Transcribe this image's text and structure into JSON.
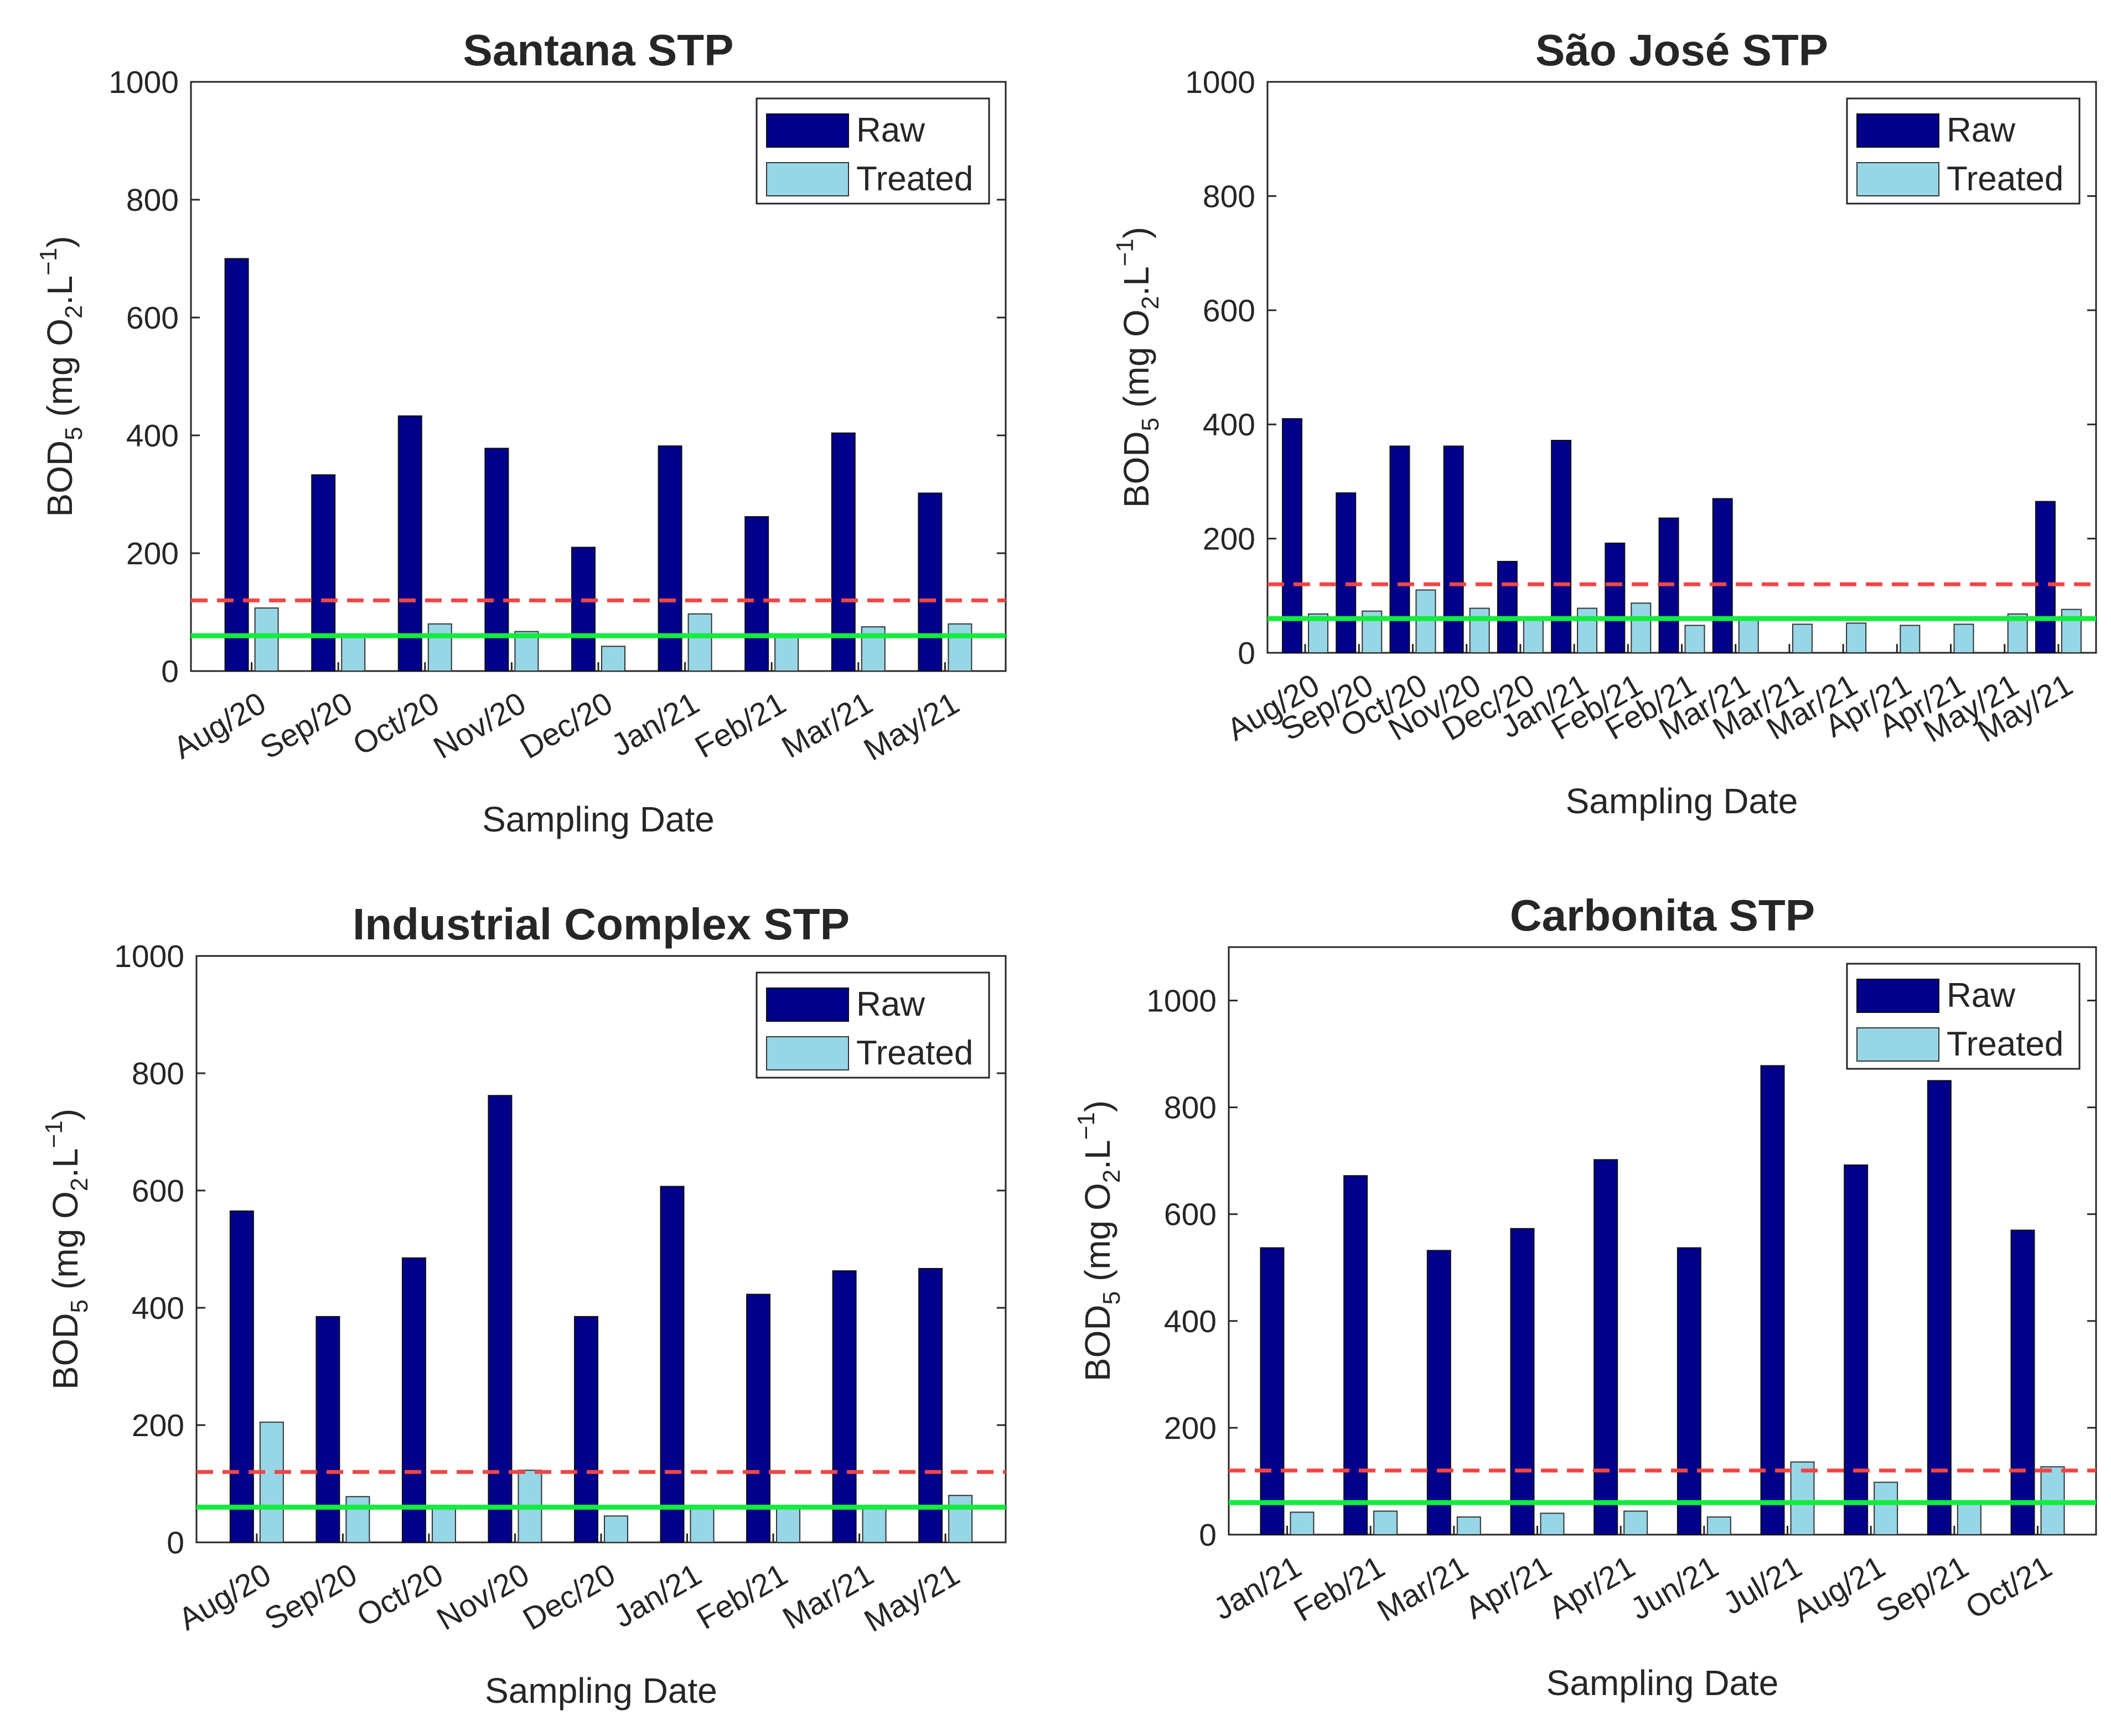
{
  "colors": {
    "raw": "#00008b",
    "treated": "#96d6e6",
    "limit_red": "#f04646",
    "limit_green": "#13ec3c"
  },
  "chart_data": [
    {
      "type": "bar",
      "title": "Santana STP",
      "xlabel": "Sampling Date",
      "ylabel": {
        "main": "BOD",
        "sub": "5",
        "unit_open": " (mg O",
        "unit_sub": "2",
        "unit_mid": ".L",
        "unit_sup": "−1",
        "unit_close": ")"
      },
      "ylim": [
        0,
        1000
      ],
      "yticks": [
        0,
        200,
        400,
        600,
        800,
        1000
      ],
      "categories": [
        "Aug/20",
        "Sep/20",
        "Oct/20",
        "Nov/20",
        "Dec/20",
        "Jan/21",
        "Feb/21",
        "Mar/21",
        "May/21"
      ],
      "series": [
        {
          "name": "Raw",
          "values": [
            700,
            333,
            433,
            378,
            210,
            382,
            262,
            404,
            302
          ]
        },
        {
          "name": "Treated",
          "values": [
            107,
            61,
            80,
            67,
            42,
            97,
            61,
            75,
            80
          ]
        }
      ],
      "reference_lines": [
        {
          "value": 120,
          "style": "dashed",
          "color": "red"
        },
        {
          "value": 60,
          "style": "solid",
          "color": "green"
        }
      ],
      "legend": {
        "position": "top-right",
        "entries": [
          "Raw",
          "Treated"
        ]
      }
    },
    {
      "type": "bar",
      "title": "São José STP",
      "xlabel": "Sampling Date",
      "ylabel": {
        "main": "BOD",
        "sub": "5",
        "unit_open": " (mg O",
        "unit_sub": "2",
        "unit_mid": ".L",
        "unit_sup": "−1",
        "unit_close": ")"
      },
      "ylim": [
        0,
        1000
      ],
      "yticks": [
        0,
        200,
        400,
        600,
        800,
        1000
      ],
      "categories": [
        "Aug/20",
        "Sep/20",
        "Oct/20",
        "Nov/20",
        "Dec/20",
        "Jan/21",
        "Feb/21",
        "Feb/21",
        "Mar/21",
        "Mar/21",
        "Mar/21",
        "Apr/21",
        "Apr/21",
        "May/21",
        "May/21"
      ],
      "series": [
        {
          "name": "Raw",
          "values": [
            410,
            280,
            362,
            362,
            160,
            372,
            192,
            236,
            270,
            0,
            0,
            0,
            0,
            0,
            265
          ]
        },
        {
          "name": "Treated",
          "values": [
            68,
            73,
            110,
            78,
            60,
            78,
            87,
            48,
            63,
            50,
            52,
            48,
            50,
            68,
            76
          ]
        }
      ],
      "reference_lines": [
        {
          "value": 120,
          "style": "dashed",
          "color": "red"
        },
        {
          "value": 60,
          "style": "solid",
          "color": "green"
        }
      ],
      "legend": {
        "position": "top-right",
        "entries": [
          "Raw",
          "Treated"
        ]
      }
    },
    {
      "type": "bar",
      "title": "Industrial Complex STP",
      "xlabel": "Sampling Date",
      "ylabel": {
        "main": "BOD",
        "sub": "5",
        "unit_open": " (mg O",
        "unit_sub": "2",
        "unit_mid": ".L",
        "unit_sup": "−1",
        "unit_close": ")"
      },
      "ylim": [
        0,
        1000
      ],
      "yticks": [
        0,
        200,
        400,
        600,
        800,
        1000
      ],
      "categories": [
        "Aug/20",
        "Sep/20",
        "Oct/20",
        "Nov/20",
        "Dec/20",
        "Jan/21",
        "Feb/21",
        "Mar/21",
        "May/21"
      ],
      "series": [
        {
          "name": "Raw",
          "values": [
            565,
            385,
            485,
            762,
            385,
            607,
            423,
            463,
            467
          ]
        },
        {
          "name": "Treated",
          "values": [
            205,
            78,
            57,
            123,
            45,
            60,
            60,
            62,
            80
          ]
        }
      ],
      "reference_lines": [
        {
          "value": 120,
          "style": "dashed",
          "color": "red"
        },
        {
          "value": 60,
          "style": "solid",
          "color": "green"
        }
      ],
      "legend": {
        "position": "top-right",
        "entries": [
          "Raw",
          "Treated"
        ]
      }
    },
    {
      "type": "bar",
      "title": "Carbonita STP",
      "xlabel": "Sampling Date",
      "ylabel": {
        "main": "BOD",
        "sub": "5",
        "unit_open": " (mg O",
        "unit_sub": "2",
        "unit_mid": ".L",
        "unit_sup": "−1",
        "unit_close": ")"
      },
      "ylim": [
        0,
        1100
      ],
      "yticks": [
        0,
        200,
        400,
        600,
        800,
        1000
      ],
      "categories": [
        "Jan/21",
        "Feb/21",
        "Mar/21",
        "Apr/21",
        "Apr/21",
        "Jun/21",
        "Jul/21",
        "Aug/21",
        "Sep/21",
        "Oct/21"
      ],
      "series": [
        {
          "name": "Raw",
          "values": [
            537,
            672,
            532,
            573,
            702,
            537,
            878,
            692,
            850,
            570
          ]
        },
        {
          "name": "Treated",
          "values": [
            42,
            44,
            33,
            40,
            44,
            33,
            136,
            98,
            63,
            127
          ]
        }
      ],
      "reference_lines": [
        {
          "value": 120,
          "style": "dashed",
          "color": "red"
        },
        {
          "value": 60,
          "style": "solid",
          "color": "green"
        }
      ],
      "legend": {
        "position": "top-right",
        "entries": [
          "Raw",
          "Treated"
        ]
      }
    }
  ]
}
